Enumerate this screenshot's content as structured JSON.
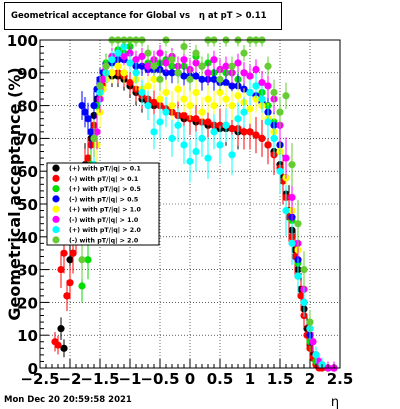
{
  "chart_data": {
    "type": "scatter",
    "title": "Geometrical acceptance for Global vs   η at pT > 0.11",
    "xlabel": "η",
    "ylabel": "Geometrical acceptance (%)",
    "xlim": [
      -2.5,
      2.5
    ],
    "ylim": [
      0,
      100
    ],
    "xticks": [
      "−2.5",
      "−2",
      "−1.5",
      "−1",
      "−0.5",
      "0",
      "0.5",
      "1",
      "1.5",
      "2",
      "2.5"
    ],
    "xtick_values": [
      -2.5,
      -2,
      -1.5,
      -1,
      -0.5,
      0,
      0.5,
      1,
      1.5,
      2,
      2.5
    ],
    "yticks": [
      "0",
      "10",
      "20",
      "30",
      "40",
      "50",
      "60",
      "70",
      "80",
      "90",
      "100"
    ],
    "ytick_values": [
      0,
      10,
      20,
      30,
      40,
      50,
      60,
      70,
      80,
      90,
      100
    ],
    "grid": true,
    "legend_position": "left",
    "series": [
      {
        "name": "(+) with pT/|q| > 0.1",
        "color": "#000000",
        "x": [
          -2.15,
          -2.1,
          -2.05,
          -2.0,
          -1.95,
          -1.9,
          -1.85,
          -1.8,
          -1.75,
          -1.7,
          -1.65,
          -1.6,
          -1.55,
          -1.5,
          -1.45,
          -1.4,
          -1.3,
          -1.2,
          -1.1,
          -1.0,
          -0.9,
          -0.8,
          -0.7,
          -0.6,
          -0.5,
          -0.4,
          -0.3,
          -0.2,
          -0.1,
          0.0,
          0.1,
          0.2,
          0.3,
          0.4,
          0.5,
          0.6,
          0.7,
          0.8,
          0.9,
          1.0,
          1.1,
          1.2,
          1.3,
          1.4,
          1.5,
          1.55,
          1.6,
          1.65,
          1.7,
          1.75,
          1.8,
          1.85,
          1.9,
          1.95,
          2.0,
          2.05,
          2.1,
          2.15,
          2.2,
          2.3,
          2.4
        ],
        "y": [
          12,
          6,
          22,
          33,
          35,
          42,
          50,
          55,
          62,
          64,
          70,
          77,
          82,
          84,
          86,
          88,
          89,
          89,
          88,
          86,
          84,
          82,
          81,
          80,
          80,
          79,
          78,
          77,
          76,
          76,
          75,
          75,
          74,
          74,
          73,
          73,
          73,
          72,
          72,
          72,
          71,
          70,
          68,
          66,
          62,
          58,
          53,
          48,
          42,
          36,
          30,
          24,
          18,
          12,
          7,
          4,
          2,
          1,
          0,
          0,
          0
        ]
      },
      {
        "name": "(-) with pT/|q| > 0.1",
        "color": "#ff0000",
        "x": [
          -2.25,
          -2.2,
          -2.15,
          -2.1,
          -2.05,
          -2.0,
          -1.95,
          -1.9,
          -1.85,
          -1.8,
          -1.75,
          -1.7,
          -1.65,
          -1.6,
          -1.55,
          -1.5,
          -1.45,
          -1.4,
          -1.3,
          -1.2,
          -1.1,
          -1.0,
          -0.9,
          -0.8,
          -0.7,
          -0.6,
          -0.5,
          -0.4,
          -0.3,
          -0.2,
          -0.1,
          0.0,
          0.1,
          0.2,
          0.3,
          0.4,
          0.5,
          0.6,
          0.7,
          0.8,
          0.9,
          1.0,
          1.1,
          1.2,
          1.3,
          1.4,
          1.5,
          1.55,
          1.6,
          1.65,
          1.7,
          1.75,
          1.8,
          1.85,
          1.9,
          1.95,
          2.0,
          2.05,
          2.1,
          2.15,
          2.2,
          2.3,
          2.4
        ],
        "y": [
          8,
          7,
          30,
          35,
          22,
          26,
          35,
          42,
          48,
          55,
          60,
          64,
          68,
          74,
          80,
          84,
          86,
          88,
          90,
          90,
          89,
          87,
          85,
          83,
          82,
          81,
          80,
          79,
          78,
          77,
          77,
          76,
          76,
          75,
          75,
          74,
          74,
          74,
          73,
          73,
          72,
          72,
          71,
          70,
          68,
          65,
          61,
          57,
          52,
          46,
          40,
          34,
          28,
          22,
          16,
          10,
          6,
          3,
          1,
          0,
          0,
          0,
          0
        ]
      },
      {
        "name": "(+) with pT/|q| > 0.5",
        "color": "#00dd00",
        "x": [
          -1.8,
          -1.7,
          -1.65,
          -1.6,
          -1.55,
          -1.5,
          -1.45,
          -1.4,
          -1.3,
          -1.2,
          -1.1,
          -1.0,
          -0.9,
          -0.8,
          -0.7,
          -0.6,
          -0.5,
          -0.4,
          -0.3,
          -0.2,
          -0.1,
          0.0,
          0.1,
          0.2,
          0.3,
          0.4,
          0.5,
          0.6,
          0.7,
          0.8,
          0.9,
          1.0,
          1.1,
          1.2,
          1.3,
          1.4,
          1.5,
          1.6,
          1.7,
          1.8,
          1.9,
          2.0,
          2.1
        ],
        "y": [
          25,
          33,
          62,
          70,
          80,
          86,
          90,
          93,
          95,
          97,
          96,
          98,
          94,
          95,
          93,
          92,
          93,
          94,
          92,
          90,
          92,
          91,
          95,
          92,
          93,
          90,
          91,
          90,
          90,
          88,
          90,
          89,
          86,
          84,
          80,
          75,
          68,
          58,
          45,
          32,
          20,
          8,
          2
        ]
      },
      {
        "name": "(-) with pT/|q| > 0.5",
        "color": "#0000ff",
        "x": [
          -1.8,
          -1.75,
          -1.7,
          -1.65,
          -1.6,
          -1.55,
          -1.5,
          -1.45,
          -1.4,
          -1.3,
          -1.2,
          -1.1,
          -1.0,
          -0.9,
          -0.8,
          -0.7,
          -0.6,
          -0.5,
          -0.4,
          -0.3,
          -0.2,
          -0.1,
          0.0,
          0.1,
          0.2,
          0.3,
          0.4,
          0.5,
          0.6,
          0.7,
          0.8,
          0.9,
          1.0,
          1.1,
          1.2,
          1.3,
          1.4,
          1.5,
          1.6,
          1.7,
          1.8,
          1.9,
          2.0,
          2.1,
          2.2,
          2.3,
          2.4
        ],
        "y": [
          80,
          78,
          76,
          72,
          80,
          85,
          88,
          90,
          92,
          93,
          94,
          94,
          93,
          92,
          92,
          91,
          91,
          91,
          90,
          90,
          90,
          89,
          89,
          89,
          88,
          88,
          88,
          87,
          87,
          86,
          86,
          85,
          84,
          83,
          81,
          78,
          74,
          68,
          58,
          46,
          33,
          20,
          10,
          4,
          1,
          0,
          0
        ]
      },
      {
        "name": "(+) with pT/|q| > 1.0",
        "color": "#ffff00",
        "x": [
          -1.6,
          -1.55,
          -1.5,
          -1.45,
          -1.4,
          -1.3,
          -1.2,
          -1.1,
          -1.0,
          -0.9,
          -0.8,
          -0.7,
          -0.6,
          -0.5,
          -0.4,
          -0.3,
          -0.2,
          -0.1,
          0.0,
          0.1,
          0.2,
          0.3,
          0.4,
          0.5,
          0.6,
          0.7,
          0.8,
          0.9,
          1.0,
          1.1,
          1.2,
          1.3,
          1.4,
          1.5,
          1.6,
          1.7,
          1.8,
          1.9,
          2.0,
          2.1,
          2.2
        ],
        "y": [
          48,
          68,
          78,
          85,
          88,
          90,
          92,
          90,
          93,
          88,
          85,
          86,
          88,
          82,
          84,
          80,
          85,
          82,
          80,
          84,
          78,
          82,
          80,
          84,
          82,
          80,
          83,
          81,
          79,
          82,
          80,
          76,
          72,
          66,
          58,
          48,
          36,
          24,
          12,
          4,
          1
        ]
      },
      {
        "name": "(-) with pT/|q| > 1.0",
        "color": "#ff00ff",
        "x": [
          -1.55,
          -1.5,
          -1.45,
          -1.4,
          -1.3,
          -1.2,
          -1.1,
          -1.0,
          -0.9,
          -0.8,
          -0.7,
          -0.6,
          -0.5,
          -0.4,
          -0.3,
          -0.2,
          -0.1,
          0.0,
          0.1,
          0.2,
          0.3,
          0.4,
          0.5,
          0.6,
          0.7,
          0.8,
          0.9,
          1.0,
          1.1,
          1.2,
          1.3,
          1.4,
          1.5,
          1.6,
          1.7,
          1.8,
          1.9,
          2.0,
          2.05,
          2.1,
          2.15,
          2.2,
          2.3,
          2.4
        ],
        "y": [
          72,
          82,
          88,
          92,
          95,
          96,
          95,
          96,
          94,
          95,
          92,
          94,
          96,
          93,
          95,
          92,
          94,
          91,
          93,
          92,
          90,
          94,
          91,
          92,
          90,
          93,
          90,
          89,
          91,
          87,
          86,
          82,
          74,
          64,
          52,
          38,
          24,
          12,
          8,
          4,
          2,
          1,
          0,
          0
        ]
      },
      {
        "name": "(+) with pT/|q| > 2.0",
        "color": "#00ffff",
        "x": [
          -1.6,
          -1.5,
          -1.4,
          -1.3,
          -1.2,
          -1.1,
          -1.0,
          -0.9,
          -0.8,
          -0.7,
          -0.6,
          -0.5,
          -0.4,
          -0.3,
          -0.2,
          -0.1,
          0.0,
          0.1,
          0.2,
          0.3,
          0.4,
          0.5,
          0.6,
          0.7,
          0.8,
          0.9,
          1.0,
          1.1,
          1.2,
          1.3,
          1.4,
          1.5,
          1.6,
          1.7,
          1.8,
          1.9,
          2.0,
          2.1,
          2.2
        ],
        "y": [
          62,
          84,
          90,
          94,
          96,
          98,
          93,
          90,
          84,
          80,
          72,
          75,
          78,
          70,
          74,
          68,
          63,
          66,
          70,
          64,
          72,
          68,
          74,
          65,
          76,
          78,
          84,
          86,
          82,
          75,
          70,
          60,
          48,
          38,
          28,
          20,
          12,
          4,
          1
        ]
      },
      {
        "name": "(-) with pT/|q| > 2.0",
        "color": "#66cc33",
        "x": [
          -1.8,
          -1.6,
          -1.5,
          -1.4,
          -1.3,
          -1.2,
          -1.1,
          -1.0,
          -0.9,
          -0.8,
          -0.7,
          -0.6,
          -0.5,
          -0.4,
          -0.3,
          -0.2,
          -0.1,
          0.0,
          0.1,
          0.2,
          0.3,
          0.4,
          0.5,
          0.6,
          0.7,
          0.8,
          0.9,
          1.0,
          1.1,
          1.2,
          1.3,
          1.4,
          1.5,
          1.6,
          1.7,
          1.8,
          1.9,
          2.0
        ],
        "y": [
          33,
          70,
          86,
          92,
          100,
          100,
          100,
          100,
          100,
          100,
          96,
          92,
          88,
          100,
          94,
          90,
          98,
          88,
          96,
          92,
          100,
          100,
          88,
          100,
          92,
          100,
          96,
          100,
          100,
          100,
          92,
          84,
          78,
          83,
          62,
          44,
          30,
          14
        ]
      }
    ]
  },
  "footer": {
    "timestamp": "Mon Dec 20 20:59:58 2021"
  }
}
